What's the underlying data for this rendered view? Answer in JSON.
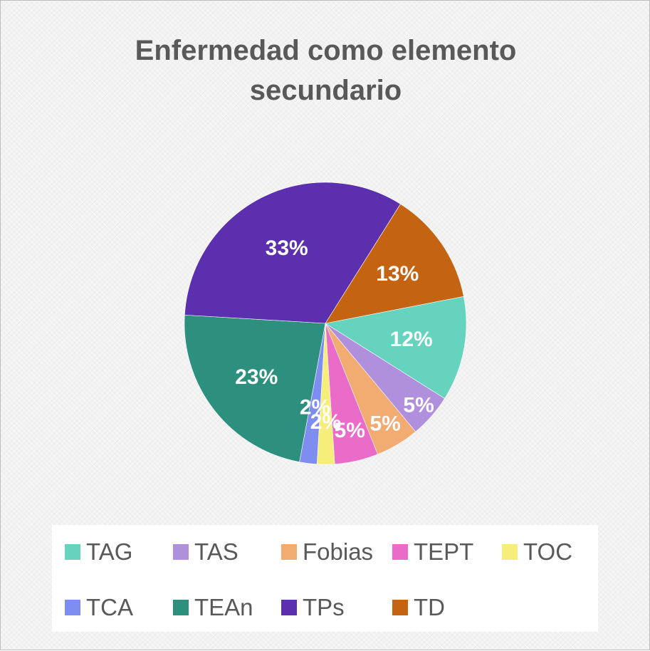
{
  "chart_data": {
    "type": "pie",
    "title": "Enfermedad como elemento secundario",
    "slices": [
      {
        "label": "TAG",
        "value": 12,
        "display": "12%",
        "color": "#66d3be"
      },
      {
        "label": "TAS",
        "value": 5,
        "display": "5%",
        "color": "#b08fdd"
      },
      {
        "label": "Fobias",
        "value": 5,
        "display": "5%",
        "color": "#f2ab70"
      },
      {
        "label": "TEPT",
        "value": 5,
        "display": "5%",
        "color": "#eb6bc8"
      },
      {
        "label": "TOC",
        "value": 2,
        "display": "2%",
        "color": "#f5ee7a"
      },
      {
        "label": "TCA",
        "value": 2,
        "display": "2%",
        "color": "#7e8ef0"
      },
      {
        "label": "TEAn",
        "value": 23,
        "display": "23%",
        "color": "#2d8f7d"
      },
      {
        "label": "TPs",
        "value": 33,
        "display": "33%",
        "color": "#5b2fae"
      },
      {
        "label": "TD",
        "value": 13,
        "display": "13%",
        "color": "#c46413"
      }
    ],
    "legend_position": "bottom"
  }
}
